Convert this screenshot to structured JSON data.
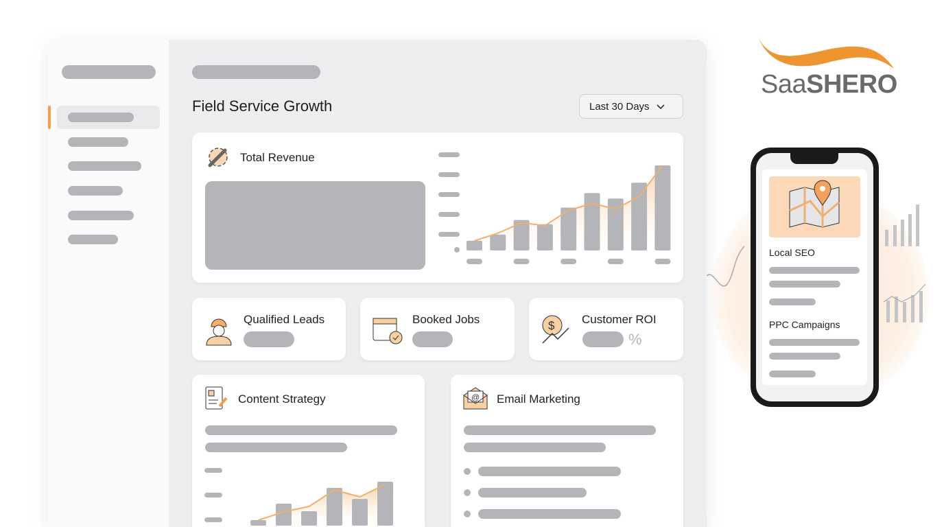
{
  "brand": {
    "logo_text_light": "Saa",
    "logo_text_bold": "SHERO",
    "accent": "#f0a04b"
  },
  "header": {
    "title": "Field Service Growth",
    "date_range": "Last 30 Days"
  },
  "cards": {
    "revenue": {
      "title": "Total Revenue",
      "icon": "gear-wrench-icon"
    },
    "leads": {
      "title": "Qualified Leads",
      "icon": "worker-icon"
    },
    "jobs": {
      "title": "Booked Jobs",
      "icon": "calendar-check-icon"
    },
    "roi": {
      "title": "Customer ROI",
      "icon": "dollar-growth-icon",
      "unit": "%"
    },
    "content": {
      "title": "Content Strategy",
      "icon": "document-edit-icon"
    },
    "email": {
      "title": "Email Marketing",
      "icon": "envelope-at-icon"
    }
  },
  "phone": {
    "section1": "Local SEO",
    "section2": "PPC Campaigns",
    "icon": "map-pin-icon"
  },
  "chart_data": [
    {
      "type": "bar",
      "name": "revenue-chart",
      "values": [
        14,
        23,
        44,
        38,
        62,
        83,
        75,
        98,
        123
      ],
      "trend": [
        14,
        25,
        40,
        36,
        58,
        68,
        60,
        78,
        123
      ]
    },
    {
      "type": "bar",
      "name": "content-chart",
      "values": [
        8,
        32,
        21,
        55,
        39,
        64
      ],
      "trend": [
        8,
        20,
        28,
        52,
        42,
        60
      ]
    }
  ],
  "colors": {
    "orange": "#f0a04b",
    "bar": "#b4b5b8",
    "bg": "#eceeef"
  }
}
